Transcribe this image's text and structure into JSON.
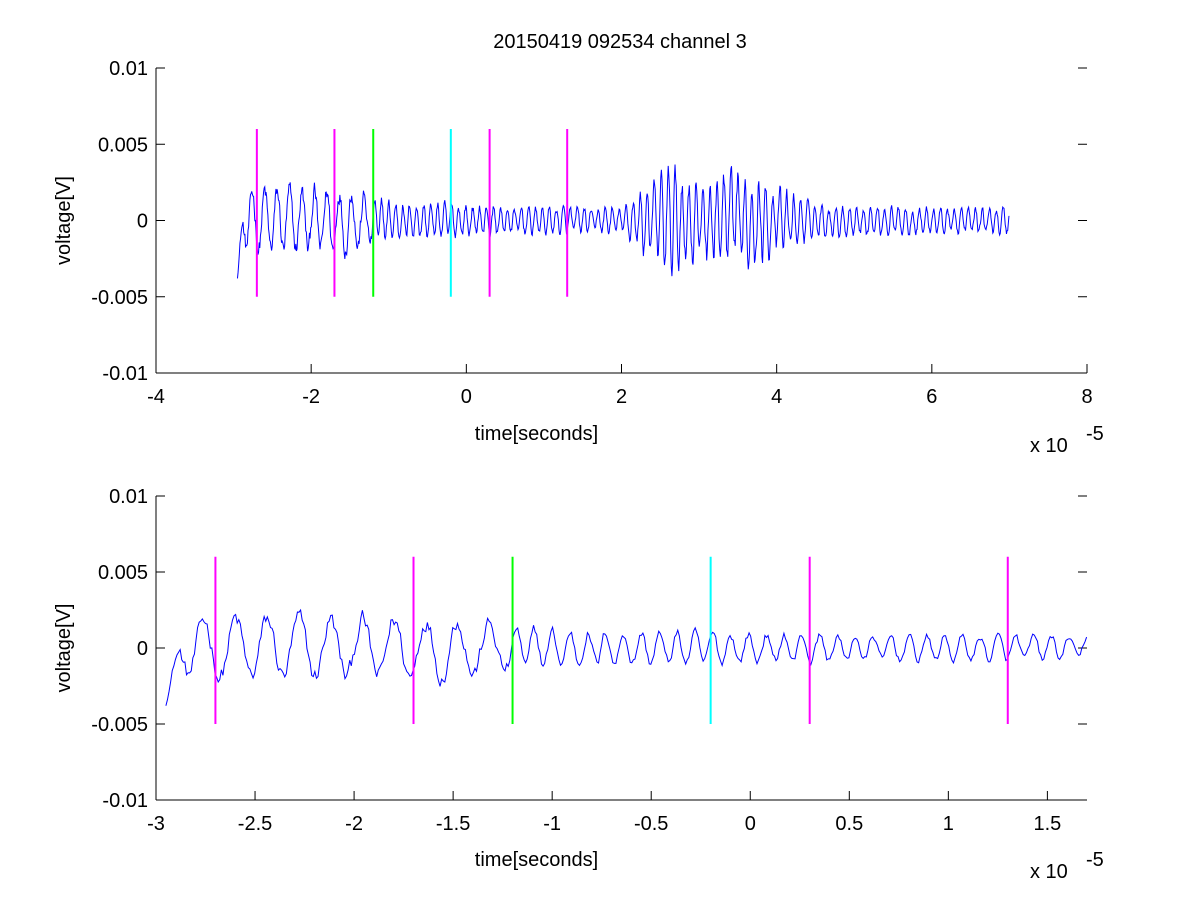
{
  "title": "20150419 092534 channel 3",
  "chart_data": [
    {
      "type": "line",
      "title": "20150419 092534 channel 3",
      "xlabel": "time[seconds]",
      "ylabel": "voltage[V]",
      "x_exponent_label": "x 10",
      "x_exponent": "-5",
      "xlim": [
        -4,
        8
      ],
      "ylim": [
        -0.01,
        0.01
      ],
      "x_ticks": [
        -4,
        -2,
        0,
        2,
        4,
        6,
        8
      ],
      "x_tick_labels": [
        "-4",
        "-2",
        "0",
        "2",
        "4",
        "6",
        "8"
      ],
      "y_ticks": [
        -0.01,
        -0.005,
        0,
        0.005,
        0.01
      ],
      "y_tick_labels": [
        "-0.01",
        "-0.005",
        "0",
        "0.005",
        "0.01"
      ],
      "grid": false,
      "waveform": {
        "color": "#0000ff",
        "x_start": -2.95,
        "x_end": 7.0,
        "envelope": [
          [
            -2.95,
            0.0022
          ],
          [
            -2.7,
            0.0025
          ],
          [
            -2.0,
            0.0025
          ],
          [
            -1.5,
            0.0025
          ],
          [
            -1.2,
            0.0018
          ],
          [
            -1.0,
            0.0014
          ],
          [
            0.0,
            0.0012
          ],
          [
            1.0,
            0.001
          ],
          [
            2.0,
            0.001
          ],
          [
            2.3,
            0.0025
          ],
          [
            2.6,
            0.004
          ],
          [
            3.0,
            0.003
          ],
          [
            3.5,
            0.004
          ],
          [
            4.0,
            0.0025
          ],
          [
            4.5,
            0.0012
          ],
          [
            6.0,
            0.001
          ],
          [
            7.0,
            0.001
          ]
        ],
        "start_value": -0.0038
      },
      "markers": [
        {
          "x": -2.7,
          "y_from": -0.005,
          "y_to": 0.006,
          "color": "#ff00ff"
        },
        {
          "x": -1.7,
          "y_from": -0.005,
          "y_to": 0.006,
          "color": "#ff00ff"
        },
        {
          "x": -1.2,
          "y_from": -0.005,
          "y_to": 0.006,
          "color": "#00ff00"
        },
        {
          "x": -0.2,
          "y_from": -0.005,
          "y_to": 0.006,
          "color": "#00ffff"
        },
        {
          "x": 0.3,
          "y_from": -0.005,
          "y_to": 0.006,
          "color": "#ff00ff"
        },
        {
          "x": 1.3,
          "y_from": -0.005,
          "y_to": 0.006,
          "color": "#ff00ff"
        }
      ]
    },
    {
      "type": "line",
      "xlabel": "time[seconds]",
      "ylabel": "voltage[V]",
      "x_exponent_label": "x 10",
      "x_exponent": "-5",
      "xlim": [
        -3.0,
        1.7
      ],
      "ylim": [
        -0.01,
        0.01
      ],
      "x_ticks": [
        -3,
        -2.5,
        -2,
        -1.5,
        -1,
        -0.5,
        0,
        0.5,
        1,
        1.5
      ],
      "x_tick_labels": [
        "-3",
        "-2.5",
        "-2",
        "-1.5",
        "-1",
        "-0.5",
        "0",
        "0.5",
        "1",
        "1.5"
      ],
      "y_ticks": [
        -0.01,
        -0.005,
        0,
        0.005,
        0.01
      ],
      "y_tick_labels": [
        "-0.01",
        "-0.005",
        "0",
        "0.005",
        "0.01"
      ],
      "grid": false,
      "waveform": {
        "color": "#0000ff",
        "x_start": -2.95,
        "x_end": 1.7,
        "envelope": [
          [
            -2.95,
            0.0022
          ],
          [
            -2.7,
            0.0025
          ],
          [
            -2.0,
            0.0025
          ],
          [
            -1.5,
            0.0028
          ],
          [
            -1.2,
            0.0018
          ],
          [
            -1.0,
            0.0014
          ],
          [
            -0.5,
            0.0012
          ],
          [
            0.0,
            0.0012
          ],
          [
            0.5,
            0.0012
          ],
          [
            1.0,
            0.001
          ],
          [
            1.7,
            0.001
          ]
        ],
        "start_value": -0.0038
      },
      "markers": [
        {
          "x": -2.7,
          "y_from": -0.005,
          "y_to": 0.006,
          "color": "#ff00ff"
        },
        {
          "x": -1.7,
          "y_from": -0.005,
          "y_to": 0.006,
          "color": "#ff00ff"
        },
        {
          "x": -1.2,
          "y_from": -0.005,
          "y_to": 0.006,
          "color": "#00ff00"
        },
        {
          "x": -0.2,
          "y_from": -0.005,
          "y_to": 0.006,
          "color": "#00ffff"
        },
        {
          "x": 0.3,
          "y_from": -0.005,
          "y_to": 0.006,
          "color": "#ff00ff"
        },
        {
          "x": 1.3,
          "y_from": -0.005,
          "y_to": 0.006,
          "color": "#ff00ff"
        }
      ]
    }
  ]
}
